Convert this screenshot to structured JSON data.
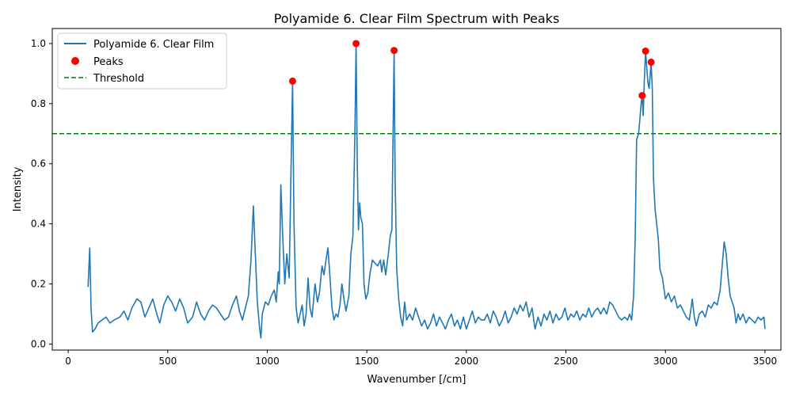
{
  "chart_data": {
    "type": "line",
    "title": "Polyamide 6. Clear Film Spectrum with Peaks",
    "xlabel": "Wavenumber [/cm]",
    "ylabel": "Intensity",
    "xlim": [
      -80,
      3580
    ],
    "ylim": [
      -0.02,
      1.05
    ],
    "xticks": [
      0,
      500,
      1000,
      1500,
      2000,
      2500,
      3000,
      3500
    ],
    "yticks": [
      0.0,
      0.2,
      0.4,
      0.6,
      0.8,
      1.0
    ],
    "xtick_labels": [
      "0",
      "500",
      "1000",
      "1500",
      "2000",
      "2500",
      "3000",
      "3500"
    ],
    "ytick_labels": [
      "0.0",
      "0.2",
      "0.4",
      "0.6",
      "0.8",
      "1.0"
    ],
    "grid": false,
    "legend_position": "upper-left",
    "colors": {
      "spectrum": "#1f77b4",
      "peaks": "#ff0000",
      "threshold": "#008000"
    },
    "series": [
      {
        "name": "Polyamide 6. Clear Film",
        "kind": "line",
        "points": [
          [
            100,
            0.19
          ],
          [
            108,
            0.32
          ],
          [
            115,
            0.12
          ],
          [
            122,
            0.04
          ],
          [
            135,
            0.05
          ],
          [
            150,
            0.07
          ],
          [
            170,
            0.08
          ],
          [
            190,
            0.09
          ],
          [
            210,
            0.07
          ],
          [
            230,
            0.08
          ],
          [
            260,
            0.09
          ],
          [
            280,
            0.11
          ],
          [
            300,
            0.08
          ],
          [
            320,
            0.12
          ],
          [
            345,
            0.15
          ],
          [
            365,
            0.14
          ],
          [
            385,
            0.09
          ],
          [
            405,
            0.12
          ],
          [
            425,
            0.15
          ],
          [
            445,
            0.1
          ],
          [
            460,
            0.07
          ],
          [
            480,
            0.13
          ],
          [
            500,
            0.16
          ],
          [
            520,
            0.14
          ],
          [
            540,
            0.11
          ],
          [
            560,
            0.15
          ],
          [
            580,
            0.12
          ],
          [
            600,
            0.07
          ],
          [
            625,
            0.09
          ],
          [
            645,
            0.14
          ],
          [
            665,
            0.1
          ],
          [
            685,
            0.08
          ],
          [
            705,
            0.11
          ],
          [
            725,
            0.13
          ],
          [
            745,
            0.12
          ],
          [
            765,
            0.1
          ],
          [
            785,
            0.08
          ],
          [
            805,
            0.09
          ],
          [
            825,
            0.13
          ],
          [
            845,
            0.16
          ],
          [
            860,
            0.11
          ],
          [
            875,
            0.08
          ],
          [
            890,
            0.12
          ],
          [
            905,
            0.16
          ],
          [
            918,
            0.28
          ],
          [
            930,
            0.46
          ],
          [
            940,
            0.3
          ],
          [
            950,
            0.14
          ],
          [
            962,
            0.05
          ],
          [
            968,
            0.02
          ],
          [
            975,
            0.1
          ],
          [
            990,
            0.14
          ],
          [
            1005,
            0.13
          ],
          [
            1020,
            0.16
          ],
          [
            1035,
            0.18
          ],
          [
            1045,
            0.14
          ],
          [
            1055,
            0.24
          ],
          [
            1060,
            0.2
          ],
          [
            1068,
            0.53
          ],
          [
            1078,
            0.35
          ],
          [
            1088,
            0.2
          ],
          [
            1098,
            0.3
          ],
          [
            1110,
            0.22
          ],
          [
            1120,
            0.6
          ],
          [
            1127,
            0.875
          ],
          [
            1134,
            0.4
          ],
          [
            1145,
            0.12
          ],
          [
            1155,
            0.07
          ],
          [
            1165,
            0.1
          ],
          [
            1175,
            0.13
          ],
          [
            1185,
            0.06
          ],
          [
            1195,
            0.1
          ],
          [
            1205,
            0.22
          ],
          [
            1215,
            0.12
          ],
          [
            1225,
            0.09
          ],
          [
            1240,
            0.2
          ],
          [
            1252,
            0.14
          ],
          [
            1262,
            0.17
          ],
          [
            1275,
            0.26
          ],
          [
            1285,
            0.23
          ],
          [
            1295,
            0.28
          ],
          [
            1305,
            0.32
          ],
          [
            1315,
            0.22
          ],
          [
            1325,
            0.12
          ],
          [
            1335,
            0.08
          ],
          [
            1345,
            0.1
          ],
          [
            1355,
            0.09
          ],
          [
            1365,
            0.13
          ],
          [
            1375,
            0.2
          ],
          [
            1385,
            0.15
          ],
          [
            1395,
            0.11
          ],
          [
            1410,
            0.16
          ],
          [
            1420,
            0.3
          ],
          [
            1430,
            0.36
          ],
          [
            1440,
            0.7
          ],
          [
            1446,
            1.0
          ],
          [
            1452,
            0.6
          ],
          [
            1458,
            0.38
          ],
          [
            1464,
            0.47
          ],
          [
            1470,
            0.42
          ],
          [
            1478,
            0.4
          ],
          [
            1486,
            0.2
          ],
          [
            1495,
            0.15
          ],
          [
            1505,
            0.17
          ],
          [
            1515,
            0.23
          ],
          [
            1528,
            0.28
          ],
          [
            1540,
            0.27
          ],
          [
            1555,
            0.26
          ],
          [
            1568,
            0.28
          ],
          [
            1575,
            0.24
          ],
          [
            1585,
            0.28
          ],
          [
            1595,
            0.23
          ],
          [
            1608,
            0.3
          ],
          [
            1618,
            0.36
          ],
          [
            1626,
            0.38
          ],
          [
            1632,
            0.7
          ],
          [
            1637,
            0.977
          ],
          [
            1642,
            0.55
          ],
          [
            1650,
            0.25
          ],
          [
            1660,
            0.15
          ],
          [
            1670,
            0.09
          ],
          [
            1680,
            0.06
          ],
          [
            1690,
            0.14
          ],
          [
            1700,
            0.08
          ],
          [
            1715,
            0.1
          ],
          [
            1730,
            0.08
          ],
          [
            1745,
            0.12
          ],
          [
            1760,
            0.09
          ],
          [
            1775,
            0.06
          ],
          [
            1790,
            0.08
          ],
          [
            1805,
            0.05
          ],
          [
            1820,
            0.07
          ],
          [
            1835,
            0.1
          ],
          [
            1850,
            0.06
          ],
          [
            1865,
            0.09
          ],
          [
            1880,
            0.07
          ],
          [
            1895,
            0.05
          ],
          [
            1910,
            0.08
          ],
          [
            1925,
            0.1
          ],
          [
            1940,
            0.06
          ],
          [
            1955,
            0.08
          ],
          [
            1970,
            0.05
          ],
          [
            1985,
            0.09
          ],
          [
            2000,
            0.05
          ],
          [
            2015,
            0.08
          ],
          [
            2030,
            0.11
          ],
          [
            2045,
            0.07
          ],
          [
            2060,
            0.09
          ],
          [
            2075,
            0.08
          ],
          [
            2090,
            0.08
          ],
          [
            2105,
            0.1
          ],
          [
            2120,
            0.07
          ],
          [
            2135,
            0.11
          ],
          [
            2150,
            0.09
          ],
          [
            2165,
            0.06
          ],
          [
            2180,
            0.08
          ],
          [
            2195,
            0.11
          ],
          [
            2210,
            0.07
          ],
          [
            2225,
            0.09
          ],
          [
            2240,
            0.12
          ],
          [
            2255,
            0.1
          ],
          [
            2270,
            0.13
          ],
          [
            2285,
            0.11
          ],
          [
            2300,
            0.14
          ],
          [
            2315,
            0.09
          ],
          [
            2330,
            0.12
          ],
          [
            2345,
            0.05
          ],
          [
            2360,
            0.09
          ],
          [
            2375,
            0.06
          ],
          [
            2390,
            0.1
          ],
          [
            2405,
            0.08
          ],
          [
            2420,
            0.11
          ],
          [
            2435,
            0.07
          ],
          [
            2450,
            0.1
          ],
          [
            2465,
            0.08
          ],
          [
            2480,
            0.09
          ],
          [
            2495,
            0.12
          ],
          [
            2510,
            0.08
          ],
          [
            2525,
            0.1
          ],
          [
            2540,
            0.09
          ],
          [
            2555,
            0.11
          ],
          [
            2570,
            0.08
          ],
          [
            2585,
            0.1
          ],
          [
            2600,
            0.09
          ],
          [
            2615,
            0.12
          ],
          [
            2630,
            0.09
          ],
          [
            2645,
            0.11
          ],
          [
            2660,
            0.12
          ],
          [
            2675,
            0.1
          ],
          [
            2690,
            0.12
          ],
          [
            2705,
            0.1
          ],
          [
            2720,
            0.14
          ],
          [
            2735,
            0.13
          ],
          [
            2750,
            0.11
          ],
          [
            2765,
            0.09
          ],
          [
            2780,
            0.08
          ],
          [
            2795,
            0.09
          ],
          [
            2810,
            0.08
          ],
          [
            2820,
            0.1
          ],
          [
            2830,
            0.08
          ],
          [
            2840,
            0.16
          ],
          [
            2848,
            0.35
          ],
          [
            2855,
            0.68
          ],
          [
            2865,
            0.7
          ],
          [
            2872,
            0.75
          ],
          [
            2878,
            0.8
          ],
          [
            2883,
            0.827
          ],
          [
            2888,
            0.76
          ],
          [
            2894,
            0.88
          ],
          [
            2900,
            0.975
          ],
          [
            2906,
            0.92
          ],
          [
            2912,
            0.87
          ],
          [
            2918,
            0.85
          ],
          [
            2924,
            0.9
          ],
          [
            2928,
            0.938
          ],
          [
            2934,
            0.85
          ],
          [
            2940,
            0.55
          ],
          [
            2948,
            0.45
          ],
          [
            2956,
            0.4
          ],
          [
            2964,
            0.35
          ],
          [
            2972,
            0.25
          ],
          [
            2985,
            0.22
          ],
          [
            3000,
            0.15
          ],
          [
            3015,
            0.17
          ],
          [
            3030,
            0.14
          ],
          [
            3045,
            0.16
          ],
          [
            3060,
            0.12
          ],
          [
            3075,
            0.13
          ],
          [
            3090,
            0.11
          ],
          [
            3105,
            0.09
          ],
          [
            3120,
            0.08
          ],
          [
            3135,
            0.15
          ],
          [
            3145,
            0.09
          ],
          [
            3155,
            0.06
          ],
          [
            3170,
            0.1
          ],
          [
            3185,
            0.11
          ],
          [
            3200,
            0.09
          ],
          [
            3215,
            0.13
          ],
          [
            3230,
            0.12
          ],
          [
            3245,
            0.14
          ],
          [
            3260,
            0.13
          ],
          [
            3275,
            0.18
          ],
          [
            3285,
            0.26
          ],
          [
            3295,
            0.34
          ],
          [
            3305,
            0.3
          ],
          [
            3315,
            0.22
          ],
          [
            3325,
            0.16
          ],
          [
            3335,
            0.14
          ],
          [
            3345,
            0.12
          ],
          [
            3355,
            0.07
          ],
          [
            3365,
            0.1
          ],
          [
            3375,
            0.08
          ],
          [
            3390,
            0.1
          ],
          [
            3405,
            0.07
          ],
          [
            3420,
            0.09
          ],
          [
            3435,
            0.08
          ],
          [
            3450,
            0.07
          ],
          [
            3465,
            0.09
          ],
          [
            3480,
            0.08
          ],
          [
            3495,
            0.09
          ],
          [
            3500,
            0.05
          ]
        ]
      },
      {
        "name": "Peaks",
        "kind": "scatter",
        "points": [
          [
            1127,
            0.875
          ],
          [
            1446,
            1.0
          ],
          [
            1637,
            0.977
          ],
          [
            2883,
            0.827
          ],
          [
            2900,
            0.975
          ],
          [
            2928,
            0.938
          ]
        ]
      },
      {
        "name": "Threshold",
        "kind": "hline",
        "y": 0.7
      }
    ]
  }
}
